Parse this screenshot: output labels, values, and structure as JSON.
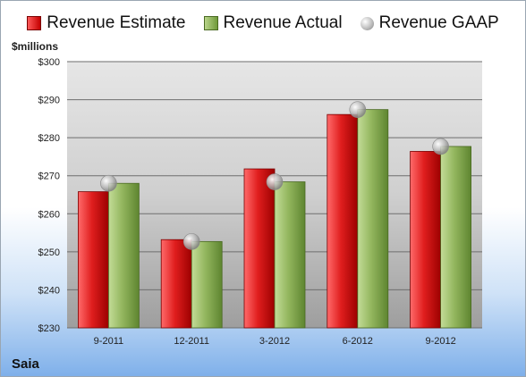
{
  "chart_data": {
    "type": "bar",
    "company": "Saia",
    "unit_label": "$millions",
    "categories": [
      "9-2011",
      "12-2011",
      "3-2012",
      "6-2012",
      "9-2012"
    ],
    "series": [
      {
        "name": "Revenue Estimate",
        "kind": "bar",
        "color": "#d01818",
        "values": [
          265.8,
          253.2,
          271.8,
          286.1,
          276.4
        ]
      },
      {
        "name": "Revenue Actual",
        "kind": "bar",
        "color": "#8db05a",
        "values": [
          268.0,
          252.7,
          268.4,
          287.4,
          277.7
        ]
      },
      {
        "name": "Revenue GAAP",
        "kind": "marker",
        "color": "#b0b0b0",
        "values": [
          268.0,
          252.7,
          268.4,
          287.4,
          277.7
        ]
      }
    ],
    "ylim": [
      230,
      300
    ],
    "yticks": [
      230,
      240,
      250,
      260,
      270,
      280,
      290,
      300
    ],
    "ytick_labels": [
      "$230",
      "$240",
      "$250",
      "$260",
      "$270",
      "$280",
      "$290",
      "$300"
    ],
    "grid": true,
    "legend_position": "top"
  }
}
